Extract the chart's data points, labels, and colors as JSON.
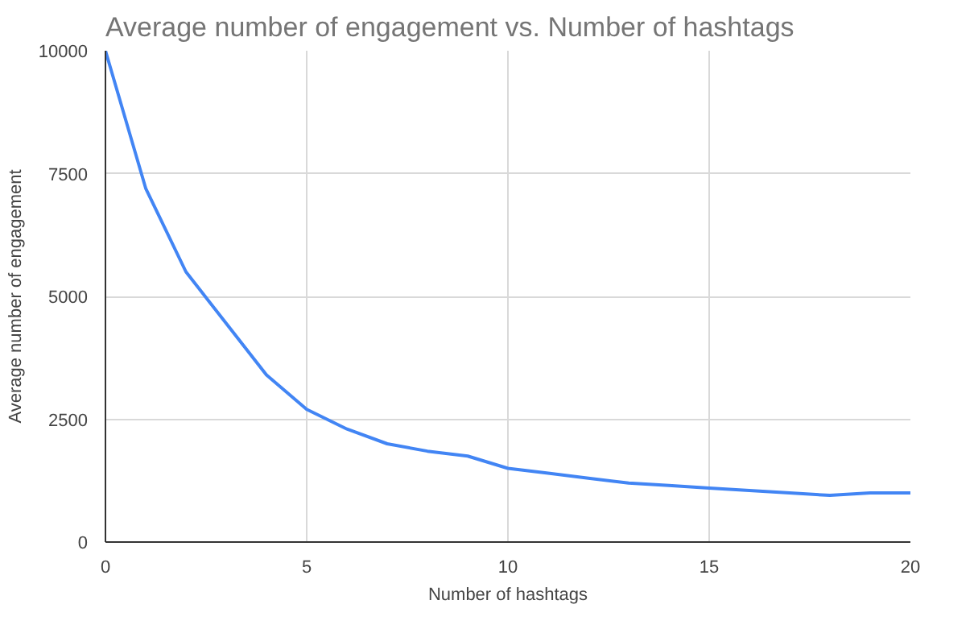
{
  "chart_data": {
    "type": "line",
    "title": "Average number of engagement vs. Number of hashtags",
    "xlabel": "Number of hashtags",
    "ylabel": "Average number of engagement",
    "x": [
      0,
      1,
      2,
      3,
      4,
      5,
      6,
      7,
      8,
      9,
      10,
      11,
      12,
      13,
      14,
      15,
      16,
      17,
      18,
      19,
      20
    ],
    "series": [
      {
        "color": "#4285f4",
        "values": [
          10000,
          7200,
          5500,
          4450,
          3400,
          2700,
          2300,
          2000,
          1850,
          1750,
          1500,
          1400,
          1300,
          1200,
          1150,
          1100,
          1050,
          1000,
          950,
          1000,
          1000
        ]
      }
    ],
    "xlim": [
      0,
      20
    ],
    "xticks": [
      0,
      5,
      10,
      15,
      20
    ],
    "ylim": [
      0,
      10000
    ],
    "yticks": [
      0,
      2500,
      5000,
      7500,
      10000
    ],
    "grid": true,
    "marker": "none",
    "line_style": "solid"
  }
}
